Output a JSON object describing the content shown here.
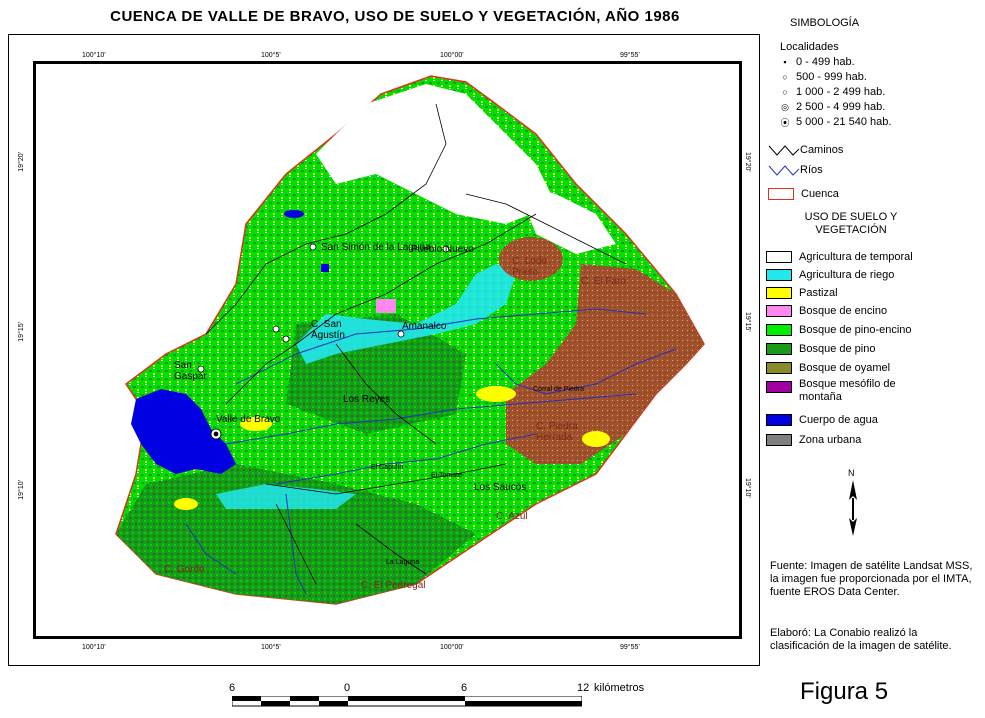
{
  "title": "CUENCA DE VALLE DE BRAVO, USO DE SUELO Y VEGETACIÓN, AÑO 1986",
  "coords": {
    "top": [
      "100°10'",
      "100°5'",
      "100°00'",
      "99°55'"
    ],
    "bottom": [
      "100°10'",
      "100°5'",
      "100°00'",
      "99°55'"
    ],
    "left": [
      "19°20'",
      "19°15'",
      "19°10'"
    ],
    "right": [
      "19°20'",
      "19°15'",
      "19°10'"
    ]
  },
  "places": {
    "san_simon": "San Simón de la Laguna",
    "pueblo_nuevo": "Pueblo Nuevo",
    "c_lodo_prieto": "C. Lodo Prieto",
    "c_el_faro": "C. El Faro",
    "c_san_agustin": "C. San Agustín",
    "amanalco": "Amanalco",
    "san_gaspar": "San Gaspar",
    "los_reyes": "Los Reyes",
    "valle_de_bravo": "Valle de Bravo",
    "c_piedra_herrada": "C. Piedra Herrada",
    "los_saucos": "Los Saucos",
    "c_azul": "C. Azul",
    "c_gordo": "C. Gordo",
    "c_el_pedregal": "C. El Pedregal",
    "el_capulin": "El Capulín",
    "el_tomate": "El Tomate",
    "corral_de_piedra": "Corral de Piedra",
    "la_laguna": "La Laguna"
  },
  "legend": {
    "heading": "SIMBOLOGÍA",
    "localidades_title": "Localidades",
    "localidades": [
      {
        "label": "0 - 499 hab.",
        "symbol": "▪"
      },
      {
        "label": "500 - 999 hab.",
        "symbol": "○"
      },
      {
        "label": "1 000 - 2 499 hab.",
        "symbol": "○"
      },
      {
        "label": "2 500 - 4 999 hab.",
        "symbol": "◎"
      },
      {
        "label": "5 000 - 21 540 hab.",
        "symbol": "⦿"
      }
    ],
    "lines": [
      {
        "label": "Caminos",
        "color": "#000000"
      },
      {
        "label": "Ríos",
        "color": "#2030c0"
      }
    ],
    "cuenca": {
      "label": "Cuenca",
      "color": "#e03020"
    },
    "uso_title": "USO DE SUELO Y VEGETACIÓN",
    "uso": [
      {
        "label": "Agricultura de temporal",
        "color": "#ffffff"
      },
      {
        "label": "Agricultura de riego",
        "color": "#22e8f0"
      },
      {
        "label": "Pastizal",
        "color": "#ffff00"
      },
      {
        "label": "Bosque de encino",
        "color": "#ff88ee"
      },
      {
        "label": "Bosque de pino-encino",
        "color": "#00ee00"
      },
      {
        "label": "Bosque de pino",
        "color": "#1a9a1a"
      },
      {
        "label": "Bosque de oyamel",
        "color": "#8a8a2a"
      },
      {
        "label": "Bosque mesófilo de montaña",
        "color": "#a000a0"
      },
      {
        "label": "Cuerpo de agua",
        "color": "#0000e0"
      },
      {
        "label": "Zona urbana",
        "color": "#808080"
      }
    ]
  },
  "north": "N",
  "source": "Fuente: Imagen de satélite Landsat MSS, la imagen fue proporcionada por el IMTA, fuente EROS Data Center.",
  "credit": "Elaboró: La Conabio realizó la clasificación de la imagen de satélite.",
  "scale": {
    "labels": [
      "6",
      "0",
      "6",
      "12"
    ],
    "unit": "kilómetros"
  },
  "figure": "Figura 5"
}
